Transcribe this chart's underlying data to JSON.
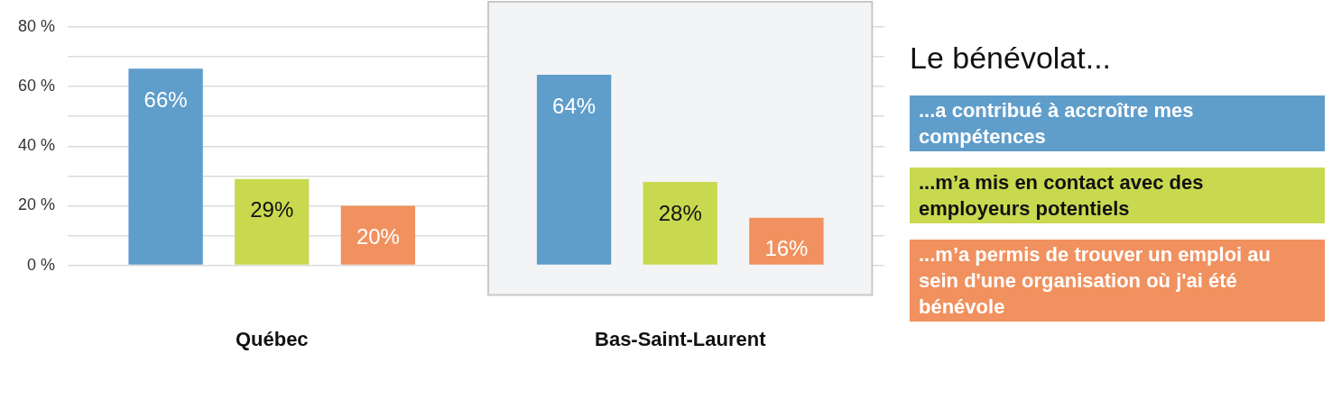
{
  "chart_data": {
    "type": "bar",
    "legend_title": "Le bénévolat...",
    "categories": [
      "Québec",
      "Bas-Saint-Laurent"
    ],
    "series": [
      {
        "name": "...a contribué à accroître mes compétences",
        "color": "#5f9dca",
        "values": [
          66,
          64
        ],
        "value_labels": [
          "66%",
          "64%"
        ]
      },
      {
        "name": "...m’a mis en contact avec des employeurs potentiels",
        "color": "#c8d94f",
        "values": [
          29,
          28
        ],
        "value_labels": [
          "29%",
          "28%"
        ]
      },
      {
        "name": "...m’a permis de trouver un emploi au sein d'une organisation où j'ai été bénévole",
        "color": "#f0915f",
        "values": [
          20,
          16
        ],
        "value_labels": [
          "20%",
          "16%"
        ]
      }
    ],
    "ylim": [
      0,
      80
    ],
    "yticks": [
      {
        "value": 0,
        "label": "0 %"
      },
      {
        "value": 10,
        "label": null
      },
      {
        "value": 20,
        "label": "20 %"
      },
      {
        "value": 30,
        "label": null
      },
      {
        "value": 40,
        "label": "40 %"
      },
      {
        "value": 50,
        "label": null
      },
      {
        "value": 60,
        "label": "60 %"
      },
      {
        "value": 70,
        "label": null
      },
      {
        "value": 80,
        "label": "80 %"
      }
    ],
    "bands": [
      {
        "axis": "x",
        "from": "Bas-Saint-Laurent",
        "to": "Bas-Saint-Laurent",
        "color": "#f3f4f6"
      }
    ],
    "grid": "y",
    "legend": "right"
  }
}
